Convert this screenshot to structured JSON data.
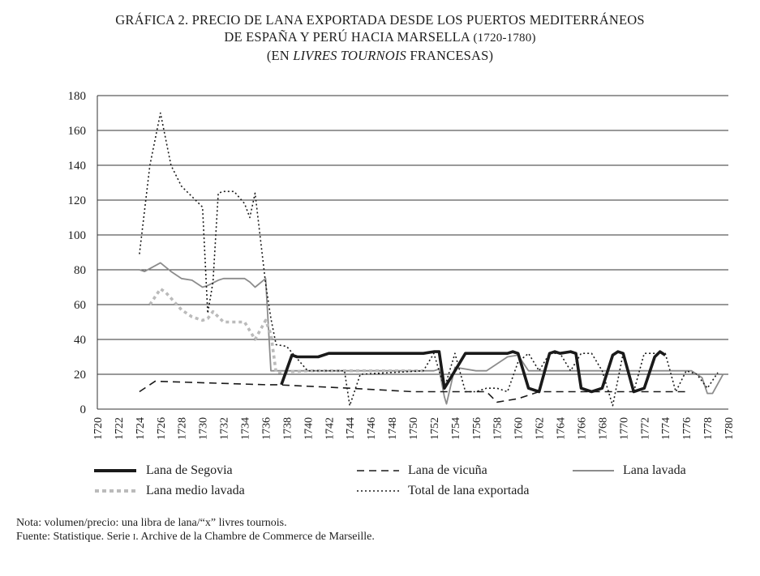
{
  "header": {
    "line1": "GRÁFICA 2. PRECIO DE LANA EXPORTADA DESDE LOS PUERTOS MEDITERRÁNEOS",
    "line2_text": "DE ESPAÑA Y PERÚ HACIA MARSELLA",
    "line2_years": "(1720-1780)",
    "line3_pre": "(EN",
    "line3_italic": "LIVRES TOURNOIS",
    "line3_post": "FRANCESAS)"
  },
  "chart_data": {
    "type": "line",
    "title": "GRÁFICA 2. PRECIO DE LANA EXPORTADA DESDE LOS PUERTOS MEDITERRÁNEOS DE ESPAÑA Y PERÚ HACIA MARSELLA (1720-1780) (EN LIVRES TOURNOIS FRANCESAS)",
    "xlabel": "",
    "ylabel": "",
    "xlim": [
      1720,
      1780
    ],
    "ylim": [
      0,
      180
    ],
    "grid": "horizontal",
    "legend_position": "bottom",
    "x_ticks": [
      "1720",
      "1722",
      "1724",
      "1726",
      "1728",
      "1730",
      "1732",
      "1734",
      "1736",
      "1738",
      "1740",
      "1742",
      "1744",
      "1746",
      "1748",
      "1750",
      "1752",
      "1754",
      "1756",
      "1758",
      "1760",
      "1762",
      "1764",
      "1766",
      "1768",
      "1770",
      "1772",
      "1774",
      "1776",
      "1778",
      "1780"
    ],
    "y_ticks": [
      "0",
      "20",
      "40",
      "60",
      "80",
      "100",
      "120",
      "140",
      "160",
      "180"
    ],
    "series": [
      {
        "name": "Lana de Segovia",
        "style": "thick-solid",
        "color": "#1a1a1a",
        "x": [
          1737.5,
          1738.5,
          1739,
          1740,
          1741,
          1742,
          1743,
          1744,
          1745,
          1746,
          1747,
          1748,
          1749,
          1750,
          1751,
          1752,
          1752.5,
          1753,
          1754,
          1755,
          1756,
          1757,
          1758,
          1759,
          1759.5,
          1760,
          1761,
          1762,
          1763,
          1763.5,
          1764,
          1765,
          1765.5,
          1766,
          1767,
          1768,
          1769,
          1769.5,
          1770,
          1771,
          1772,
          1773,
          1773.5,
          1774
        ],
        "values": [
          14,
          31,
          30,
          30,
          30,
          32,
          32,
          32,
          32,
          32,
          32,
          32,
          32,
          32,
          32,
          33,
          33,
          12,
          22,
          32,
          32,
          32,
          32,
          32,
          33,
          32,
          12,
          10,
          32,
          33,
          32,
          33,
          32,
          12,
          10,
          12,
          31,
          33,
          32,
          10,
          12,
          30,
          33,
          31
        ]
      },
      {
        "name": "Lana de vicuña",
        "style": "long-dash",
        "color": "#1a1a1a",
        "x": [
          1724,
          1725.5,
          1736,
          1737,
          1744,
          1750,
          1757,
          1758,
          1760,
          1762,
          1765,
          1770,
          1776
        ],
        "values": [
          10,
          16,
          14,
          14,
          12,
          10,
          10,
          4,
          6,
          10,
          10,
          10,
          10
        ]
      },
      {
        "name": "Lana lavada",
        "style": "thin-solid",
        "color": "#8c8c8c",
        "x": [
          1724,
          1724.5,
          1726,
          1727,
          1728,
          1729,
          1730,
          1730.5,
          1731.5,
          1732,
          1733,
          1734,
          1734.5,
          1735,
          1736,
          1736.5,
          1738,
          1752,
          1752.5,
          1753,
          1753.2,
          1754,
          1756,
          1757,
          1759,
          1760,
          1761,
          1776,
          1776.5,
          1777.5,
          1778,
          1778.5,
          1779.5
        ],
        "values": [
          80,
          79,
          84,
          79,
          75,
          74,
          70,
          71,
          74,
          75,
          75,
          75,
          73,
          70,
          75,
          22,
          22,
          22,
          23,
          7,
          3,
          24,
          22,
          22,
          30,
          31,
          22,
          22,
          22,
          18,
          9,
          9,
          20
        ]
      },
      {
        "name": "Lana medio lavada",
        "style": "thick-dotted",
        "color": "#bbbbbb",
        "x": [
          1725,
          1726,
          1726.5,
          1728,
          1729,
          1730,
          1730.5,
          1731,
          1732,
          1733,
          1734,
          1735,
          1736,
          1736.5,
          1737,
          1740,
          1751
        ],
        "values": [
          60,
          69,
          67,
          57,
          53,
          51,
          52,
          56,
          50,
          50,
          50,
          40,
          51,
          43,
          21,
          22,
          22
        ]
      },
      {
        "name": "Total de lana exportada",
        "style": "fine-dotted",
        "color": "#1a1a1a",
        "x": [
          1724,
          1725,
          1726,
          1727,
          1728,
          1729,
          1730,
          1730.5,
          1731,
          1731.5,
          1732,
          1733,
          1734,
          1734.5,
          1735,
          1736,
          1736.5,
          1737,
          1738,
          1740,
          1743.5,
          1744,
          1745,
          1751,
          1752,
          1753,
          1754,
          1755,
          1756,
          1757,
          1758,
          1759,
          1760,
          1761,
          1762,
          1763,
          1764,
          1765,
          1766,
          1767,
          1768,
          1769,
          1770,
          1771,
          1772,
          1773,
          1774,
          1775,
          1776,
          1777,
          1778,
          1779
        ],
        "values": [
          89,
          140,
          170,
          140,
          128,
          122,
          116,
          55,
          73,
          124,
          125,
          125,
          118,
          110,
          124,
          72,
          52,
          37,
          36,
          22,
          22,
          2,
          20,
          22,
          32,
          12,
          32,
          10,
          10,
          12,
          12,
          10,
          27,
          32,
          22,
          32,
          32,
          22,
          32,
          32,
          22,
          2,
          32,
          10,
          32,
          32,
          32,
          10,
          22,
          20,
          12,
          21
        ]
      }
    ]
  },
  "legend": {
    "segovia": "Lana de Segovia",
    "vicuna": "Lana de vicuña",
    "lavada": "Lana lavada",
    "medio": "Lana medio lavada",
    "total": "Total de lana exportada"
  },
  "notes": {
    "nota": "Nota: volumen/precio: una libra de lana/“x” livres tournois.",
    "fuente_pre": "Fuente: Statistique. Serie",
    "fuente_sc": "i",
    "fuente_post": ". Archive de la Chambre de Commerce de Marseille."
  }
}
